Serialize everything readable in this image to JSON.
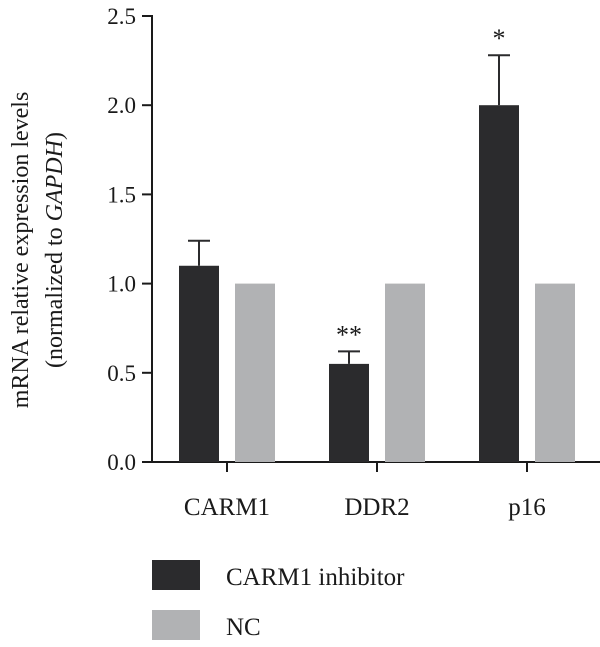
{
  "chart_data": {
    "type": "bar",
    "ylabel_line1": "mRNA relative expression levels",
    "ylabel_line2_prefix": "(normalized to ",
    "ylabel_line2_italic": "GAPDH",
    "ylabel_line2_suffix": ")",
    "ylim": [
      0,
      2.5
    ],
    "yticks": [
      "0.0",
      "0.5",
      "1.0",
      "1.5",
      "2.0",
      "2.5"
    ],
    "categories": [
      "CARM1",
      "DDR2",
      "p16"
    ],
    "series": [
      {
        "name": "CARM1 inhibitor",
        "color": "#2b2b2d",
        "values": [
          1.1,
          0.55,
          2.0
        ],
        "errors": [
          0.14,
          0.07,
          0.28
        ]
      },
      {
        "name": "NC",
        "color": "#b1b2b4",
        "values": [
          1.0,
          1.0,
          1.0
        ],
        "errors": [
          0,
          0,
          0
        ]
      }
    ],
    "annotations": [
      "",
      "**",
      "*"
    ],
    "legend": "bottom"
  }
}
